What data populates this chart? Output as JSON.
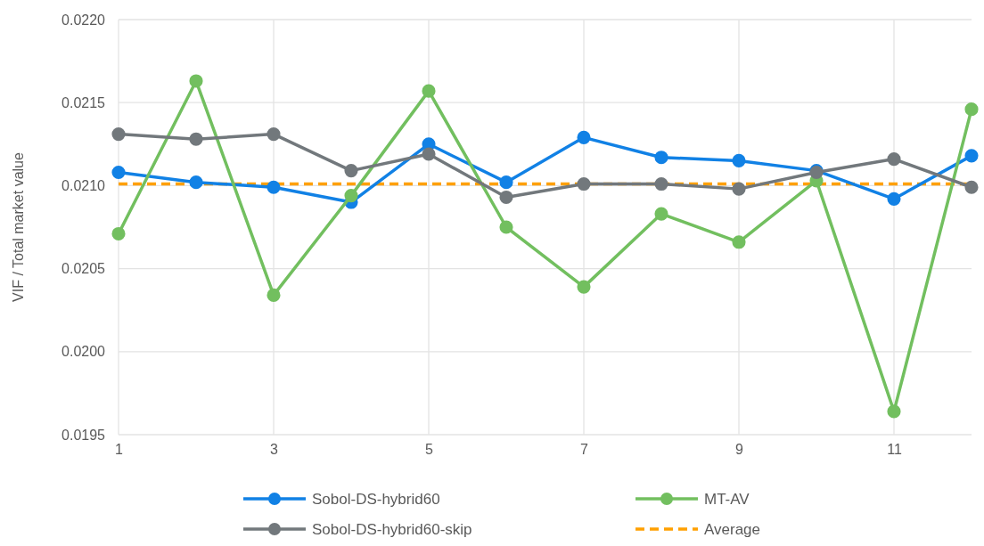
{
  "chart_data": {
    "type": "line",
    "ylabel": "VIF / Total market value",
    "x": [
      1,
      2,
      3,
      4,
      5,
      6,
      7,
      8,
      9,
      10,
      11,
      12
    ],
    "series": [
      {
        "name": "Sobol-DS-hybrid60",
        "color": "#1181e5",
        "values": [
          0.02108,
          0.02102,
          0.02099,
          0.0209,
          0.02125,
          0.02102,
          0.02129,
          0.02117,
          0.02115,
          0.02109,
          0.02092,
          0.02118
        ]
      },
      {
        "name": "MT-AV",
        "color": "#72bf5f",
        "values": [
          0.02071,
          0.02163,
          0.02034,
          0.02094,
          0.02157,
          0.02075,
          0.02039,
          0.02083,
          0.02066,
          0.02103,
          0.01964,
          0.02146
        ]
      },
      {
        "name": "Sobol-DS-hybrid60-skip",
        "color": "#72787c",
        "values": [
          0.02131,
          0.02128,
          0.02131,
          0.02109,
          0.02119,
          0.02093,
          0.02101,
          0.02101,
          0.02098,
          0.02108,
          0.02116,
          0.02099
        ]
      }
    ],
    "ref_lines": [
      {
        "axis": "y",
        "value": 0.02101,
        "label": "Average",
        "color": "#ffa000",
        "line_style": "dashed"
      }
    ],
    "xlim": [
      1,
      12
    ],
    "xticks": [
      1,
      3,
      5,
      7,
      9,
      11
    ],
    "ylim": [
      0.0195,
      0.022
    ],
    "yticks": [
      {
        "value": 0.0195,
        "label": "0.0195"
      },
      {
        "value": 0.02,
        "label": "0.0200"
      },
      {
        "value": 0.0205,
        "label": "0.0205"
      },
      {
        "value": 0.021,
        "label": "0.0210"
      },
      {
        "value": 0.0215,
        "label": "0.0215"
      },
      {
        "value": 0.022,
        "label": "0.0220"
      }
    ],
    "grid": true,
    "legend": "bottom",
    "marker": "circle",
    "line_style": "solid"
  }
}
